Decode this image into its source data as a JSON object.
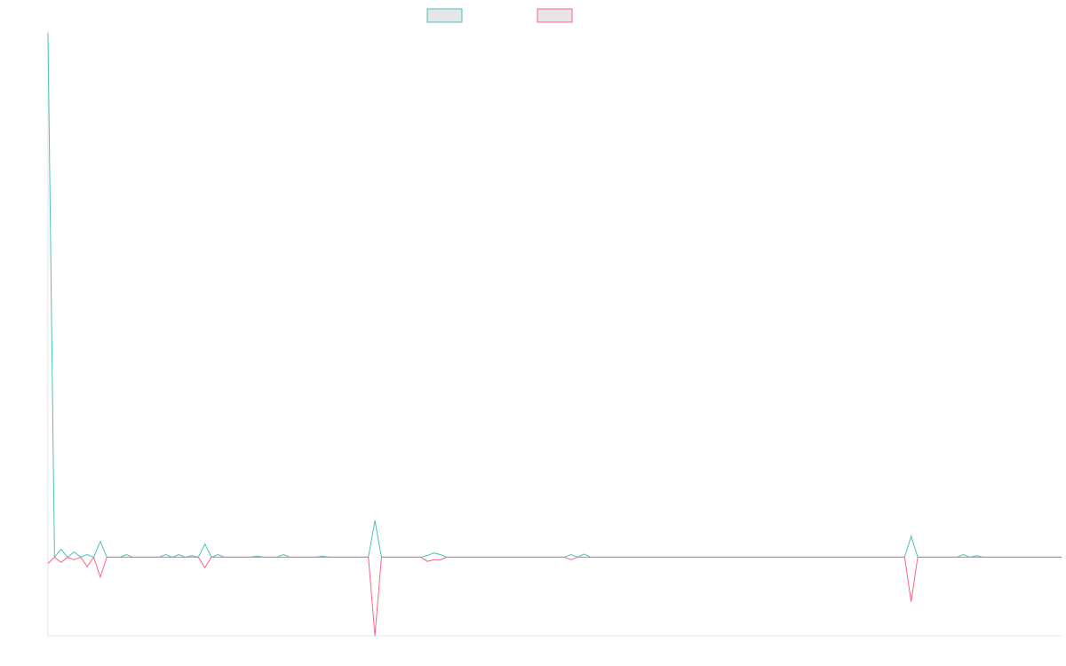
{
  "chart_data": {
    "type": "line",
    "title": "",
    "xlabel": "",
    "ylabel": "",
    "grid": false,
    "legend": "top-center",
    "series": [
      {
        "name": "",
        "color": "#4bc0c0",
        "values": [
          100,
          0,
          1.5,
          0,
          1,
          0,
          0.5,
          0,
          3,
          0,
          0,
          0,
          0.5,
          0,
          0,
          0,
          0,
          0,
          0.5,
          0,
          0.5,
          0,
          0.3,
          0,
          2.5,
          0,
          0.5,
          0,
          0,
          0,
          0,
          0,
          0.2,
          0,
          0,
          0,
          0.5,
          0,
          0,
          0,
          0,
          0,
          0.2,
          0,
          0,
          0,
          0,
          0,
          0,
          0,
          7,
          0,
          0,
          0,
          0,
          0,
          0,
          0,
          0.3,
          0.8,
          0.5,
          0,
          0,
          0,
          0,
          0,
          0,
          0,
          0,
          0,
          0,
          0,
          0,
          0,
          0,
          0,
          0,
          0,
          0,
          0,
          0.5,
          0,
          0.6,
          0,
          0,
          0,
          0,
          0,
          0,
          0,
          0,
          0,
          0,
          0,
          0,
          0,
          0,
          0,
          0,
          0,
          0,
          0,
          0,
          0,
          0,
          0,
          0,
          0,
          0,
          0,
          0,
          0,
          0,
          0,
          0,
          0,
          0,
          0,
          0,
          0,
          0,
          0,
          0,
          0,
          0,
          0,
          0,
          0,
          0,
          0,
          0,
          0,
          4,
          0,
          0,
          0,
          0,
          0,
          0,
          0,
          0.5,
          0,
          0.3,
          0,
          0,
          0,
          0,
          0,
          0,
          0,
          0,
          0,
          0,
          0,
          0,
          0
        ]
      },
      {
        "name": "",
        "color": "#ff6384",
        "values": [
          -1.2,
          0,
          -1,
          0,
          -0.5,
          0,
          -1.8,
          0,
          -3.8,
          0,
          0,
          0,
          0,
          0,
          0,
          0,
          0,
          0,
          0,
          0,
          0,
          0,
          0,
          0,
          -2,
          0,
          0,
          0,
          0,
          0,
          0,
          0,
          0,
          0,
          0,
          0,
          0,
          0,
          0,
          0,
          0,
          0,
          0,
          0,
          0,
          0,
          0,
          0,
          0,
          0,
          -15,
          0,
          0,
          0,
          0,
          0,
          0,
          0,
          -0.8,
          -0.5,
          -0.5,
          0,
          0,
          0,
          0,
          0,
          0,
          0,
          0,
          0,
          0,
          0,
          0,
          0,
          0,
          0,
          0,
          0,
          0,
          0,
          -0.5,
          0,
          0,
          0,
          0,
          0,
          0,
          0,
          0,
          0,
          0,
          0,
          0,
          0,
          0,
          0,
          0,
          0,
          0,
          0,
          0,
          0,
          0,
          0,
          0,
          0,
          0,
          0,
          0,
          0,
          0,
          0,
          0,
          0,
          0,
          0,
          0,
          0,
          0,
          0,
          0,
          0,
          0,
          0,
          0,
          0,
          0,
          0,
          0,
          0,
          0,
          0,
          -8.5,
          0,
          0,
          0,
          0,
          0,
          0,
          0,
          0,
          0,
          0,
          0,
          0,
          0,
          0,
          0,
          0,
          0,
          0,
          0,
          0,
          0,
          0,
          0
        ]
      }
    ],
    "ylim": [
      -15,
      100
    ]
  }
}
